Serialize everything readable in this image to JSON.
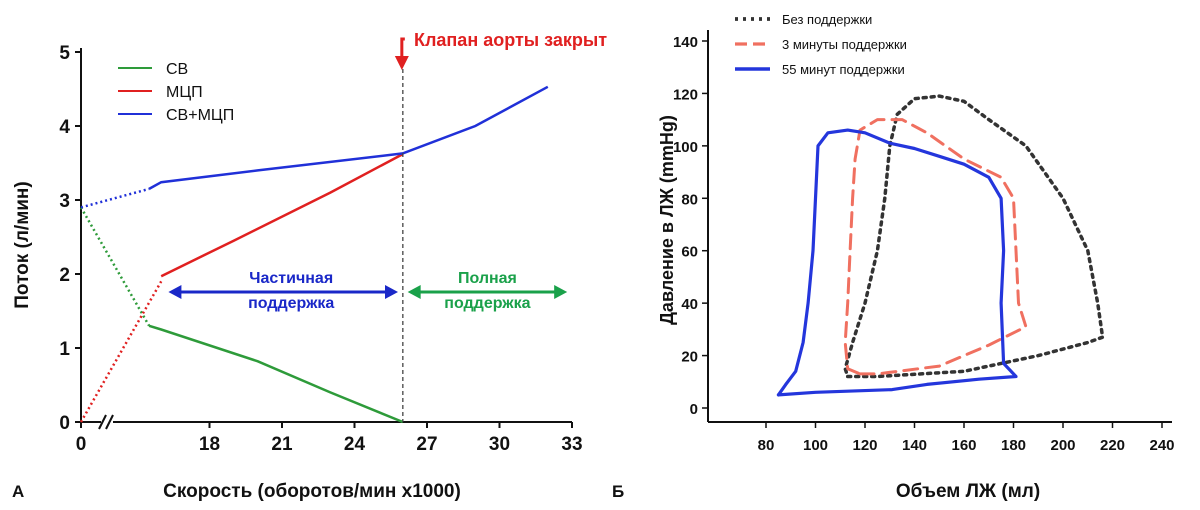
{
  "chart_data": [
    {
      "panel_label": "А",
      "type": "line",
      "xlabel": "Скорость (оборотов/мин x1000)",
      "ylabel": "Поток (л/мин)",
      "xticks": [
        0,
        18,
        21,
        24,
        27,
        30,
        33
      ],
      "yticks": [
        0,
        1,
        2,
        3,
        4,
        5
      ],
      "xlim": [
        15,
        33
      ],
      "ylim": [
        0,
        5
      ],
      "axis_break": true,
      "legend_position": "top-left",
      "series": [
        {
          "name": "СВ",
          "color": "#2e9b3a",
          "dotted_points": [
            [
              0,
              2.9
            ],
            [
              15.5,
              1.3
            ]
          ],
          "points": [
            [
              15.5,
              1.3
            ],
            [
              16,
              1.25
            ],
            [
              20,
              0.82
            ],
            [
              23,
              0.4
            ],
            [
              26,
              0.0
            ]
          ]
        },
        {
          "name": "МЦП",
          "color": "#e02020",
          "dotted_points": [
            [
              0,
              0.0
            ],
            [
              16,
              1.9
            ]
          ],
          "points": [
            [
              16,
              1.97
            ],
            [
              19,
              2.45
            ],
            [
              23,
              3.1
            ],
            [
              26,
              3.62
            ]
          ]
        },
        {
          "name": "СВ+МЦП",
          "color": "#2030d8",
          "dotted_points": [
            [
              0,
              2.9
            ],
            [
              15.5,
              3.15
            ]
          ],
          "points": [
            [
              15.5,
              3.15
            ],
            [
              16,
              3.24
            ],
            [
              20,
              3.4
            ],
            [
              26,
              3.63
            ],
            [
              29,
              4.0
            ],
            [
              32,
              4.53
            ]
          ]
        }
      ],
      "annotations": {
        "valve_label": "Клапан аорты закрыт",
        "valve_x": 26,
        "partial_label_1": "Частичная",
        "partial_label_2": "поддержка",
        "partial_range": [
          16.3,
          25.8
        ],
        "full_label_1": "Полная",
        "full_label_2": "поддержка",
        "full_range": [
          26.2,
          32.8
        ],
        "label_color_red": "#e02020",
        "label_color_blue": "#1a28c8",
        "label_color_green": "#1aa14a"
      }
    },
    {
      "panel_label": "Б",
      "type": "line",
      "xlabel": "Объем ЛЖ (мл)",
      "ylabel": "Давление в ЛЖ (mmHg)",
      "xticks": [
        80,
        100,
        120,
        140,
        160,
        180,
        200,
        220,
        240
      ],
      "yticks": [
        0,
        20,
        40,
        60,
        80,
        100,
        120,
        140
      ],
      "xlim": [
        65,
        240
      ],
      "ylim": [
        -5,
        145
      ],
      "legend_position": "top-left",
      "series": [
        {
          "name": "Без поддержки",
          "color": "#333333",
          "style": "dotted",
          "points": [
            [
              113,
              12
            ],
            [
              125,
              12
            ],
            [
              160,
              14
            ],
            [
              190,
              20
            ],
            [
              210,
              25
            ],
            [
              216,
              27
            ],
            [
              214,
              40
            ],
            [
              210,
              60
            ],
            [
              200,
              80
            ],
            [
              185,
              100
            ],
            [
              170,
              110
            ],
            [
              160,
              117
            ],
            [
              150,
              119
            ],
            [
              140,
              118
            ],
            [
              133,
              112
            ],
            [
              130,
              100
            ],
            [
              128,
              80
            ],
            [
              125,
              60
            ],
            [
              120,
              40
            ],
            [
              115,
              25
            ],
            [
              112,
              15
            ],
            [
              113,
              12
            ]
          ]
        },
        {
          "name": "3 минуты поддержки",
          "color": "#f07060",
          "style": "dashed",
          "points": [
            [
              118,
              13
            ],
            [
              125,
              13
            ],
            [
              150,
              16
            ],
            [
              170,
              24
            ],
            [
              185,
              31
            ],
            [
              182,
              40
            ],
            [
              181,
              60
            ],
            [
              180,
              80
            ],
            [
              175,
              88
            ],
            [
              160,
              95
            ],
            [
              145,
              105
            ],
            [
              135,
              110
            ],
            [
              125,
              110
            ],
            [
              118,
              106
            ],
            [
              116,
              95
            ],
            [
              115,
              80
            ],
            [
              114,
              60
            ],
            [
              113,
              40
            ],
            [
              112,
              25
            ],
            [
              113,
              15
            ],
            [
              118,
              13
            ]
          ]
        },
        {
          "name": "55 минут поддержки",
          "color": "#2436dc",
          "style": "solid",
          "points": [
            [
              85,
              5
            ],
            [
              100,
              6
            ],
            [
              131,
              7
            ],
            [
              145,
              9
            ],
            [
              166,
              11
            ],
            [
              181,
              12
            ],
            [
              176,
              17
            ],
            [
              175,
              40
            ],
            [
              176,
              60
            ],
            [
              175,
              80
            ],
            [
              170,
              88
            ],
            [
              160,
              93
            ],
            [
              150,
              96
            ],
            [
              140,
              99
            ],
            [
              130,
              101
            ],
            [
              120,
              105
            ],
            [
              113,
              106
            ],
            [
              105,
              105
            ],
            [
              101,
              100
            ],
            [
              100,
              80
            ],
            [
              99,
              60
            ],
            [
              97,
              40
            ],
            [
              95,
              25
            ],
            [
              92,
              14
            ],
            [
              88,
              9
            ],
            [
              85,
              5
            ]
          ]
        }
      ]
    }
  ],
  "panel_labels": [
    "А",
    "Б"
  ]
}
